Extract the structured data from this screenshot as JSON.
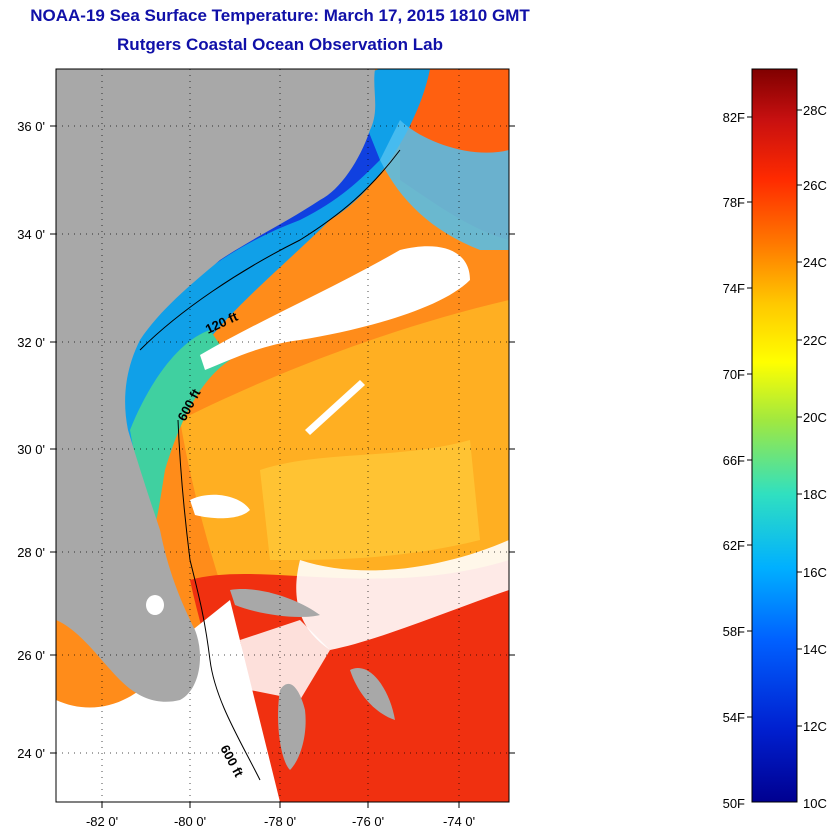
{
  "header": {
    "title": "NOAA-19 Sea Surface Temperature:  March 17, 2015 1810 GMT",
    "subtitle": "Rutgers Coastal Ocean Observation Lab"
  },
  "map": {
    "lat_labels": [
      "36 0'",
      "34 0'",
      "32 0'",
      "30 0'",
      "28 0'",
      "26 0'",
      "24 0'"
    ],
    "lon_labels": [
      "-82 0'",
      "-80 0'",
      "-78 0'",
      "-76 0'",
      "-74 0'"
    ],
    "contours": [
      "120 ft",
      "600 ft",
      "600 ft"
    ]
  },
  "colorbar": {
    "f_labels": [
      "82F",
      "78F",
      "74F",
      "70F",
      "66F",
      "62F",
      "58F",
      "54F",
      "50F"
    ],
    "c_labels": [
      "28C",
      "26C",
      "24C",
      "22C",
      "20C",
      "18C",
      "16C",
      "14C",
      "12C",
      "10C"
    ],
    "stops": [
      "#800000",
      "#c81010",
      "#ff2a00",
      "#ff7a00",
      "#ffc800",
      "#ffff00",
      "#a0e840",
      "#30e0c0",
      "#00b0ff",
      "#0060ff",
      "#0020d0",
      "#000090"
    ]
  },
  "colors": {
    "title": "#1010a8",
    "land": "#a8a8a8",
    "cloud": "#ffffff"
  }
}
